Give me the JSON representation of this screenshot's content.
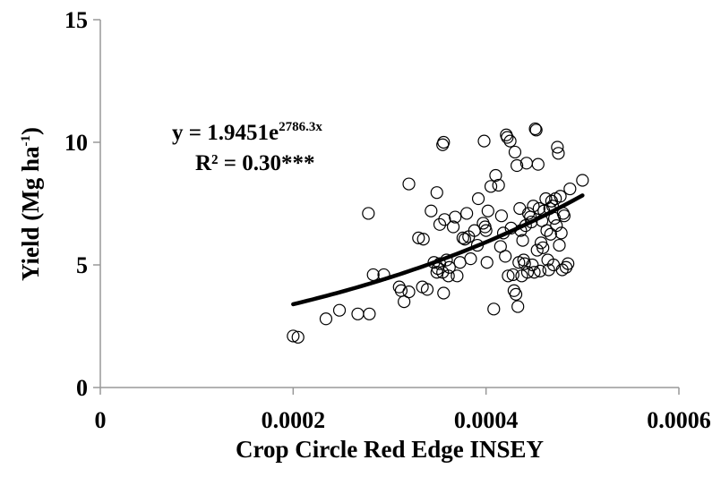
{
  "chart_data": {
    "type": "scatter",
    "xlabel": "Crop Circle Red Edge INSEY",
    "ylabel_main": "Yield (Mg ha",
    "ylabel_sup": "-1",
    "ylabel_close": ")",
    "xlim": [
      0,
      0.0006
    ],
    "ylim": [
      0,
      15
    ],
    "x_ticks": [
      0,
      0.0002,
      0.0004,
      0.0006
    ],
    "x_tick_labels": [
      "0",
      "0.0002",
      "0.0004",
      "0.0006"
    ],
    "y_ticks": [
      0,
      5,
      10,
      15
    ],
    "y_tick_labels": [
      "0",
      "5",
      "10",
      "15"
    ],
    "grid": false,
    "equation": {
      "line1_prefix": "y = 1.9451e",
      "line1_exponent": "2786.3x",
      "line2": "R² = 0.30***"
    },
    "trendline": {
      "kind": "exponential",
      "a": 1.9451,
      "b": 2786.3,
      "x_range": [
        0.0002,
        0.0005
      ]
    },
    "points": [
      [
        0.0002,
        2.1
      ],
      [
        0.000205,
        2.05
      ],
      [
        0.000234,
        2.8
      ],
      [
        0.000248,
        3.15
      ],
      [
        0.000267,
        3.0
      ],
      [
        0.000279,
        3.0
      ],
      [
        0.000278,
        7.1
      ],
      [
        0.000283,
        4.6
      ],
      [
        0.000294,
        4.6
      ],
      [
        0.00031,
        4.1
      ],
      [
        0.000312,
        3.95
      ],
      [
        0.000315,
        3.5
      ],
      [
        0.00032,
        3.9
      ],
      [
        0.00032,
        8.3
      ],
      [
        0.00033,
        6.1
      ],
      [
        0.000335,
        6.05
      ],
      [
        0.000334,
        4.1
      ],
      [
        0.000339,
        4.0
      ],
      [
        0.000343,
        7.2
      ],
      [
        0.000346,
        5.1
      ],
      [
        0.000349,
        4.7
      ],
      [
        0.00035,
        4.85
      ],
      [
        0.000352,
        6.65
      ],
      [
        0.000349,
        7.95
      ],
      [
        0.000352,
        5.05
      ],
      [
        0.000355,
        4.7
      ],
      [
        0.000355,
        9.9
      ],
      [
        0.000356,
        10.0
      ],
      [
        0.000357,
        6.85
      ],
      [
        0.000359,
        5.2
      ],
      [
        0.000361,
        4.55
      ],
      [
        0.000362,
        4.9
      ],
      [
        0.000356,
        3.85
      ],
      [
        0.000366,
        6.55
      ],
      [
        0.000368,
        6.95
      ],
      [
        0.00037,
        4.55
      ],
      [
        0.000373,
        5.1
      ],
      [
        0.000376,
        6.1
      ],
      [
        0.000378,
        6.05
      ],
      [
        0.00038,
        7.1
      ],
      [
        0.000382,
        6.15
      ],
      [
        0.000384,
        5.25
      ],
      [
        0.000388,
        6.4
      ],
      [
        0.000391,
        5.8
      ],
      [
        0.000392,
        7.7
      ],
      [
        0.000397,
        6.7
      ],
      [
        0.000398,
        10.05
      ],
      [
        0.000399,
        6.55
      ],
      [
        0.0004,
        6.4
      ],
      [
        0.000401,
        5.1
      ],
      [
        0.000402,
        7.2
      ],
      [
        0.000405,
        8.2
      ],
      [
        0.000408,
        3.2
      ],
      [
        0.00041,
        8.65
      ],
      [
        0.000413,
        8.25
      ],
      [
        0.000415,
        5.75
      ],
      [
        0.000416,
        7.0
      ],
      [
        0.000418,
        6.3
      ],
      [
        0.00042,
        5.35
      ],
      [
        0.000421,
        10.3
      ],
      [
        0.000422,
        10.2
      ],
      [
        0.000423,
        4.55
      ],
      [
        0.000425,
        10.05
      ],
      [
        0.000426,
        6.5
      ],
      [
        0.000428,
        4.6
      ],
      [
        0.000429,
        3.95
      ],
      [
        0.00043,
        9.6
      ],
      [
        0.000431,
        3.8
      ],
      [
        0.000432,
        9.05
      ],
      [
        0.000433,
        3.3
      ],
      [
        0.000434,
        5.1
      ],
      [
        0.000435,
        7.3
      ],
      [
        0.000436,
        6.4
      ],
      [
        0.000437,
        4.55
      ],
      [
        0.000438,
        6.0
      ],
      [
        0.000439,
        5.2
      ],
      [
        0.00044,
        5.05
      ],
      [
        0.000441,
        6.6
      ],
      [
        0.000442,
        9.15
      ],
      [
        0.000443,
        4.7
      ],
      [
        0.000444,
        7.1
      ],
      [
        0.000446,
        6.95
      ],
      [
        0.000447,
        6.75
      ],
      [
        0.000448,
        5.0
      ],
      [
        0.000449,
        7.4
      ],
      [
        0.00045,
        4.7
      ],
      [
        0.000451,
        10.55
      ],
      [
        0.000452,
        10.5
      ],
      [
        0.000453,
        5.6
      ],
      [
        0.000454,
        9.1
      ],
      [
        0.000455,
        7.3
      ],
      [
        0.000456,
        4.75
      ],
      [
        0.000457,
        5.9
      ],
      [
        0.000458,
        6.8
      ],
      [
        0.000459,
        5.7
      ],
      [
        0.00046,
        7.2
      ],
      [
        0.000462,
        7.7
      ],
      [
        0.000463,
        6.4
      ],
      [
        0.000464,
        5.2
      ],
      [
        0.000465,
        4.8
      ],
      [
        0.000466,
        7.3
      ],
      [
        0.000467,
        6.25
      ],
      [
        0.000468,
        7.6
      ],
      [
        0.000469,
        7.4
      ],
      [
        0.00047,
        5.0
      ],
      [
        0.000471,
        6.9
      ],
      [
        0.000472,
        7.7
      ],
      [
        0.000473,
        6.6
      ],
      [
        0.000474,
        9.8
      ],
      [
        0.000475,
        9.55
      ],
      [
        0.000476,
        5.8
      ],
      [
        0.000477,
        7.8
      ],
      [
        0.000478,
        6.3
      ],
      [
        0.000479,
        4.8
      ],
      [
        0.00048,
        7.1
      ],
      [
        0.000481,
        7.0
      ],
      [
        0.000483,
        4.9
      ],
      [
        0.000485,
        5.05
      ],
      [
        0.000487,
        8.1
      ],
      [
        0.0005,
        8.45
      ]
    ]
  }
}
